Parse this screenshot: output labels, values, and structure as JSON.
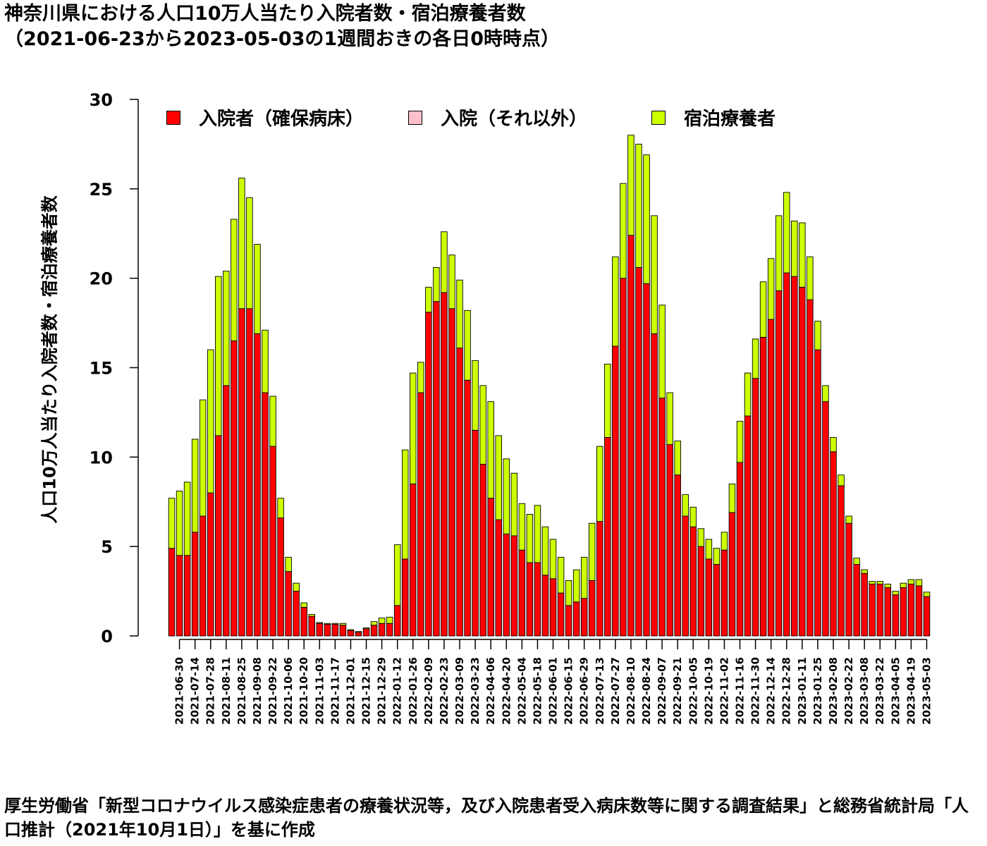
{
  "title": "神奈川県における人口10万人当たり入院者数・宿泊療養者数",
  "subtitle": "（2021-06-23から2023-05-03の1週間おきの各日0時時点）",
  "footer": "厚生労働省「新型コロナウイルス感染症患者の療養状況等，及び入院患者受入病床数等に関する調査結果」と総務省統計局「人口推計（2021年10月1日）」を基に作成",
  "colors": {
    "hospital": "#ff0000",
    "hospital_other": "#ffc0cb",
    "hotel": "#ccff00"
  },
  "chart_data": {
    "type": "bar",
    "stacked": true,
    "ylabel": "人口10万人当たり入院者数・宿泊療養者数",
    "ylim": [
      0,
      30
    ],
    "yticks": [
      0,
      5,
      10,
      15,
      20,
      25,
      30
    ],
    "legend_position": "top",
    "categories": [
      "2021-06-23",
      "2021-06-30",
      "2021-07-07",
      "2021-07-14",
      "2021-07-21",
      "2021-07-28",
      "2021-08-04",
      "2021-08-11",
      "2021-08-18",
      "2021-08-25",
      "2021-09-01",
      "2021-09-08",
      "2021-09-15",
      "2021-09-22",
      "2021-09-29",
      "2021-10-06",
      "2021-10-13",
      "2021-10-20",
      "2021-10-27",
      "2021-11-03",
      "2021-11-10",
      "2021-11-17",
      "2021-11-24",
      "2021-12-01",
      "2021-12-08",
      "2021-12-15",
      "2021-12-22",
      "2021-12-29",
      "2022-01-05",
      "2022-01-12",
      "2022-01-19",
      "2022-01-26",
      "2022-02-02",
      "2022-02-09",
      "2022-02-16",
      "2022-02-23",
      "2022-03-02",
      "2022-03-09",
      "2022-03-16",
      "2022-03-23",
      "2022-03-30",
      "2022-04-06",
      "2022-04-13",
      "2022-04-20",
      "2022-04-27",
      "2022-05-04",
      "2022-05-11",
      "2022-05-18",
      "2022-05-25",
      "2022-06-01",
      "2022-06-08",
      "2022-06-15",
      "2022-06-22",
      "2022-06-29",
      "2022-07-06",
      "2022-07-13",
      "2022-07-20",
      "2022-07-27",
      "2022-08-03",
      "2022-08-10",
      "2022-08-17",
      "2022-08-24",
      "2022-08-31",
      "2022-09-07",
      "2022-09-14",
      "2022-09-21",
      "2022-09-28",
      "2022-10-05",
      "2022-10-12",
      "2022-10-19",
      "2022-10-26",
      "2022-11-02",
      "2022-11-09",
      "2022-11-16",
      "2022-11-23",
      "2022-11-30",
      "2022-12-07",
      "2022-12-14",
      "2022-12-21",
      "2022-12-28",
      "2023-01-04",
      "2023-01-11",
      "2023-01-18",
      "2023-01-25",
      "2023-02-01",
      "2023-02-08",
      "2023-02-15",
      "2023-02-22",
      "2023-03-01",
      "2023-03-08",
      "2023-03-15",
      "2023-03-22",
      "2023-03-29",
      "2023-04-05",
      "2023-04-12",
      "2023-04-19",
      "2023-04-26",
      "2023-05-03"
    ],
    "tick_labels": [
      "2021-06-30",
      "2021-07-14",
      "2021-07-28",
      "2021-08-11",
      "2021-08-25",
      "2021-09-08",
      "2021-09-22",
      "2021-10-06",
      "2021-10-20",
      "2021-11-03",
      "2021-11-17",
      "2021-12-01",
      "2021-12-15",
      "2021-12-29",
      "2022-01-12",
      "2022-01-26",
      "2022-02-09",
      "2022-02-23",
      "2022-03-09",
      "2022-03-23",
      "2022-04-06",
      "2022-04-20",
      "2022-05-04",
      "2022-05-18",
      "2022-06-01",
      "2022-06-15",
      "2022-06-29",
      "2022-07-13",
      "2022-07-27",
      "2022-08-10",
      "2022-08-24",
      "2022-09-07",
      "2022-09-21",
      "2022-10-05",
      "2022-10-19",
      "2022-11-02",
      "2022-11-16",
      "2022-11-30",
      "2022-12-14",
      "2022-12-28",
      "2023-01-11",
      "2023-01-25",
      "2023-02-08",
      "2023-02-22",
      "2023-03-08",
      "2023-03-22",
      "2023-04-05",
      "2023-04-19",
      "2023-05-03"
    ],
    "series": [
      {
        "name": "入院者（確保病床）",
        "color": "#ff0000",
        "values": [
          4.9,
          4.5,
          4.5,
          5.8,
          6.7,
          8.0,
          11.2,
          14.0,
          16.5,
          18.3,
          18.3,
          16.9,
          13.6,
          10.6,
          6.6,
          3.6,
          2.5,
          1.6,
          1.1,
          0.7,
          0.65,
          0.65,
          0.6,
          0.3,
          0.2,
          0.4,
          0.6,
          0.7,
          0.7,
          1.7,
          4.3,
          8.5,
          13.6,
          18.1,
          18.7,
          19.2,
          18.3,
          16.1,
          14.3,
          11.5,
          9.6,
          7.7,
          6.5,
          5.7,
          5.6,
          4.8,
          4.1,
          4.1,
          3.4,
          3.2,
          2.4,
          1.7,
          1.9,
          2.1,
          3.1,
          6.4,
          11.1,
          16.2,
          20.0,
          22.4,
          20.6,
          19.7,
          16.9,
          13.3,
          10.7,
          9.0,
          6.7,
          6.1,
          5.0,
          4.3,
          4.0,
          4.8,
          6.9,
          9.7,
          12.3,
          14.4,
          16.7,
          17.7,
          19.3,
          20.3,
          20.1,
          19.5,
          18.8,
          16.0,
          13.1,
          10.3,
          8.4,
          6.3,
          4.0,
          3.5,
          2.9,
          2.9,
          2.7,
          2.3,
          2.7,
          2.9,
          2.8,
          2.2
        ]
      },
      {
        "name": "入院（それ以外）",
        "color": "#ffc0cb",
        "values": [
          0,
          0,
          0,
          0,
          0,
          0,
          0,
          0,
          0,
          0,
          0,
          0,
          0,
          0,
          0,
          0,
          0,
          0,
          0,
          0,
          0,
          0,
          0,
          0,
          0,
          0,
          0,
          0,
          0,
          0,
          0,
          0,
          0,
          0,
          0,
          0,
          0,
          0,
          0,
          0,
          0,
          0,
          0,
          0,
          0,
          0,
          0,
          0,
          0,
          0,
          0,
          0,
          0,
          0,
          0,
          0,
          0,
          0,
          0,
          0,
          0,
          0,
          0,
          0,
          0,
          0,
          0,
          0,
          0,
          0,
          0,
          0,
          0,
          0,
          0,
          0,
          0,
          0,
          0,
          0,
          0,
          0,
          0,
          0,
          0,
          0,
          0,
          0,
          0,
          0,
          0,
          0,
          0,
          0,
          0,
          0,
          0,
          0
        ]
      },
      {
        "name": "宿泊療養者",
        "color": "#ccff00",
        "values": [
          2.8,
          3.6,
          4.1,
          5.2,
          6.5,
          8.0,
          8.9,
          6.4,
          6.8,
          7.3,
          6.2,
          5.0,
          3.5,
          2.8,
          1.1,
          0.8,
          0.45,
          0.25,
          0.1,
          0.05,
          0.05,
          0.05,
          0.1,
          0.05,
          0.05,
          0.05,
          0.2,
          0.3,
          0.35,
          3.4,
          6.1,
          6.2,
          1.7,
          1.4,
          1.9,
          3.4,
          3.0,
          3.8,
          3.9,
          3.9,
          4.4,
          5.4,
          4.7,
          4.2,
          3.5,
          2.6,
          2.7,
          3.2,
          2.7,
          2.2,
          2.0,
          1.4,
          1.8,
          2.3,
          3.2,
          4.2,
          4.1,
          5.0,
          5.3,
          5.6,
          6.9,
          7.2,
          6.6,
          5.2,
          2.9,
          1.9,
          1.2,
          1.1,
          1.0,
          1.1,
          0.9,
          1.0,
          1.6,
          2.3,
          2.4,
          2.2,
          3.1,
          3.4,
          4.2,
          4.5,
          3.1,
          3.6,
          2.4,
          1.6,
          0.9,
          0.8,
          0.6,
          0.4,
          0.35,
          0.2,
          0.15,
          0.15,
          0.2,
          0.2,
          0.25,
          0.25,
          0.35,
          0.25
        ]
      }
    ]
  }
}
